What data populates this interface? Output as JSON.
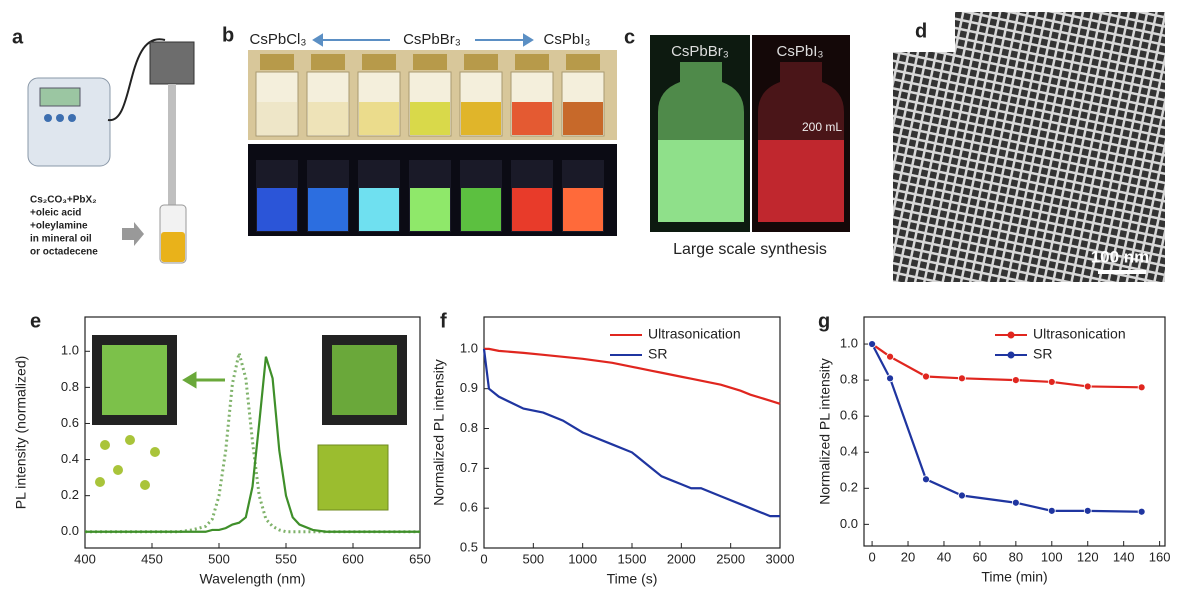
{
  "panel_a": {
    "label": "a",
    "recipe": [
      "Cs₂CO₃+PbX₂",
      "+oleic acid",
      "+oleylamine",
      "in mineral oil",
      "or octadecene"
    ]
  },
  "panel_b": {
    "label": "b",
    "left": "CsPbCl₃",
    "center": "CsPbBr₃",
    "right": "CsPbI₃"
  },
  "panel_c": {
    "label": "c",
    "left": "CsPbBr₃",
    "right": "CsPbI₃",
    "volume": "200 mL",
    "caption": "Large scale synthesis"
  },
  "panel_d": {
    "label": "d",
    "scale_bar": "100 nm"
  },
  "chart_data": [
    {
      "type": "line",
      "panel": "e",
      "x_label": "Wavelength (nm)",
      "y_label": "PL intensity (normalized)",
      "xlim": [
        400,
        650
      ],
      "xticks": [
        400,
        450,
        500,
        550,
        600,
        650
      ],
      "ylim": [
        -0.09,
        1.19
      ],
      "yticks": [
        {
          "value": 0,
          "label": "0.0"
        },
        0.2,
        0.4,
        0.6,
        0.8,
        {
          "value": 1,
          "label": "1.0"
        }
      ],
      "x": [
        400,
        420,
        440,
        460,
        470,
        480,
        490,
        495,
        500,
        505,
        510,
        515,
        520,
        525,
        530,
        535,
        540,
        545,
        550,
        555,
        560,
        570,
        580,
        600,
        620,
        650
      ],
      "series": [
        {
          "color": "#7fb26a",
          "dash": "dotted",
          "values": [
            0,
            0,
            0,
            0,
            0,
            0.01,
            0.03,
            0.07,
            0.2,
            0.45,
            0.82,
            0.99,
            0.85,
            0.5,
            0.2,
            0.07,
            0.03,
            0.01,
            0,
            0,
            0,
            0,
            0,
            0,
            0,
            0
          ]
        },
        {
          "color": "#3f8f2a",
          "dash": "solid",
          "values": [
            0,
            0,
            0,
            0,
            0,
            0,
            0,
            0.01,
            0.01,
            0.02,
            0.04,
            0.05,
            0.08,
            0.25,
            0.6,
            0.97,
            0.85,
            0.45,
            0.2,
            0.08,
            0.04,
            0.01,
            0,
            0,
            0,
            0
          ]
        }
      ]
    },
    {
      "type": "line",
      "panel": "f",
      "x_label": "Time (s)",
      "y_label": "Normalized PL intensity",
      "xlim": [
        0,
        3000
      ],
      "xticks": [
        0,
        500,
        1000,
        1500,
        2000,
        2500,
        3000
      ],
      "ylim": [
        0.5,
        1.08
      ],
      "yticks": [
        0.5,
        0.6,
        0.7,
        0.8,
        0.9,
        {
          "value": 1,
          "label": "1.0"
        }
      ],
      "legend": "upper right",
      "x": [
        0,
        50,
        150,
        400,
        600,
        800,
        1000,
        1300,
        1500,
        1700,
        1800,
        1900,
        2000,
        2100,
        2200,
        2400,
        2600,
        2700,
        2900,
        3000
      ],
      "series": [
        {
          "name": "Ultrasonication",
          "color": "#e0261f",
          "values": [
            1.0,
            1.0,
            0.995,
            0.99,
            0.985,
            0.98,
            0.975,
            0.965,
            0.955,
            0.945,
            0.94,
            0.935,
            0.93,
            0.925,
            0.92,
            0.91,
            0.895,
            0.885,
            0.87,
            0.862
          ]
        },
        {
          "name": "SR",
          "color": "#1f35a0",
          "values": [
            1.0,
            0.9,
            0.88,
            0.85,
            0.84,
            0.82,
            0.79,
            0.76,
            0.74,
            0.7,
            0.68,
            0.67,
            0.66,
            0.65,
            0.65,
            0.63,
            0.61,
            0.6,
            0.58,
            0.58
          ]
        }
      ]
    },
    {
      "type": "line",
      "panel": "g",
      "x_label": "Time (min)",
      "y_label": "Normalized PL intensity",
      "xlim": [
        -4.5,
        163
      ],
      "xticks": [
        0,
        20,
        40,
        60,
        80,
        100,
        120,
        140,
        160
      ],
      "ylim": [
        -0.12,
        1.15
      ],
      "yticks": [
        {
          "value": 0,
          "label": "0.0"
        },
        0.2,
        0.4,
        0.6,
        0.8,
        {
          "value": 1,
          "label": "1.0"
        }
      ],
      "legend": "upper right",
      "markers": true,
      "x": [
        0,
        10,
        30,
        50,
        80,
        100,
        120,
        150
      ],
      "series": [
        {
          "name": "Ultrasonication",
          "color": "#e0261f",
          "values": [
            1.0,
            0.93,
            0.82,
            0.81,
            0.8,
            0.79,
            0.765,
            0.76
          ]
        },
        {
          "name": "SR",
          "color": "#1f35a0",
          "values": [
            1.0,
            0.81,
            0.25,
            0.16,
            0.12,
            0.075,
            0.075,
            0.07
          ]
        }
      ]
    }
  ]
}
